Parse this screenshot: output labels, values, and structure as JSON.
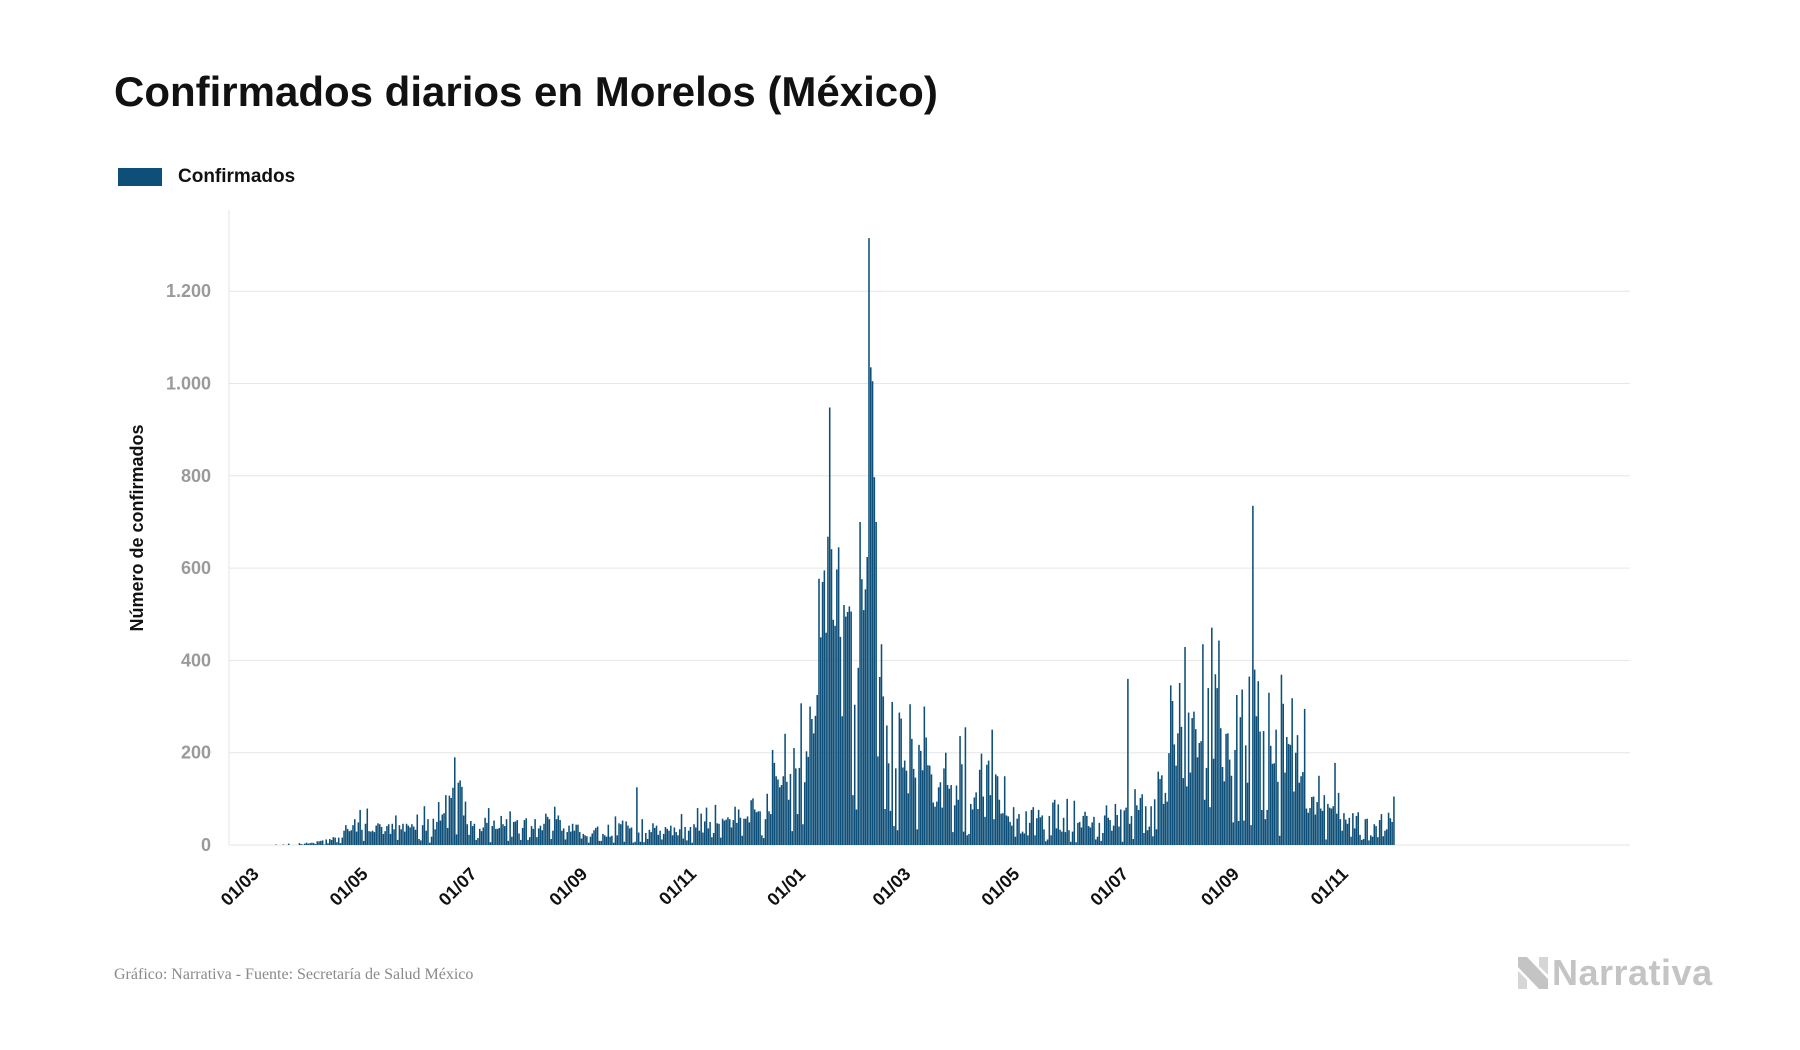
{
  "page": {
    "title": "Confirmados diarios en Morelos (México)",
    "source": "Gráfico: Narrativa - Fuente: Secretaría de Salud México",
    "brand": "Narrativa",
    "brand_icon": "narrativa-n-logo-icon"
  },
  "colors": {
    "bar": "#0d4f78",
    "grid": "#e6e6e6",
    "tick_label": "#9a9a9a",
    "axis_title": "#111111",
    "x_tick_label": "#111111"
  },
  "chart_data": {
    "type": "bar",
    "title": "Confirmados diarios en Morelos (México)",
    "legend": {
      "position": "top-left",
      "entries": [
        "Confirmados"
      ]
    },
    "ylabel": "Número de confirmados",
    "ylim": [
      0,
      1380
    ],
    "y_ticks": [
      0,
      200,
      400,
      600,
      800,
      1000,
      1200
    ],
    "y_tick_labels": [
      "0",
      "200",
      "400",
      "600",
      "800",
      "1.000",
      "1.200"
    ],
    "grid": true,
    "x_tick_labels": [
      "01/03",
      "01/05",
      "01/07",
      "01/09",
      "01/11",
      "01/01",
      "01/03",
      "01/05",
      "01/07",
      "01/09",
      "01/11"
    ],
    "x_tick_dates": [
      "2020-03-01",
      "2020-05-01",
      "2020-07-01",
      "2020-09-01",
      "2020-11-01",
      "2021-01-01",
      "2021-03-01",
      "2021-05-01",
      "2021-07-01",
      "2021-09-01",
      "2021-11-01"
    ],
    "x_range": [
      "2020-03-01",
      "2021-11-30"
    ],
    "anchors": [
      [
        "2020-03-01",
        0
      ],
      [
        "2020-03-15",
        1
      ],
      [
        "2020-04-01",
        4
      ],
      [
        "2020-04-15",
        12
      ],
      [
        "2020-04-25",
        32
      ],
      [
        "2020-05-01",
        45
      ],
      [
        "2020-05-15",
        35
      ],
      [
        "2020-06-01",
        40
      ],
      [
        "2020-06-15",
        55
      ],
      [
        "2020-06-22",
        190
      ],
      [
        "2020-06-25",
        130
      ],
      [
        "2020-07-01",
        55
      ],
      [
        "2020-07-15",
        45
      ],
      [
        "2020-08-01",
        45
      ],
      [
        "2020-08-15",
        55
      ],
      [
        "2020-09-01",
        35
      ],
      [
        "2020-09-15",
        30
      ],
      [
        "2020-10-01",
        45
      ],
      [
        "2020-10-15",
        35
      ],
      [
        "2020-11-01",
        40
      ],
      [
        "2020-11-15",
        45
      ],
      [
        "2020-12-01",
        75
      ],
      [
        "2020-12-15",
        90
      ],
      [
        "2020-12-29",
        190
      ],
      [
        "2021-01-08",
        170
      ],
      [
        "2021-01-12",
        330
      ],
      [
        "2021-01-18",
        500
      ],
      [
        "2021-01-27",
        470
      ],
      [
        "2021-02-02",
        300
      ],
      [
        "2021-02-06",
        520
      ],
      [
        "2021-02-09",
        860
      ],
      [
        "2021-02-13",
        600
      ],
      [
        "2021-02-17",
        250
      ],
      [
        "2021-02-25",
        170
      ],
      [
        "2021-03-10",
        170
      ],
      [
        "2021-03-25",
        130
      ],
      [
        "2021-04-10",
        110
      ],
      [
        "2021-04-25",
        80
      ],
      [
        "2021-05-10",
        70
      ],
      [
        "2021-05-25",
        50
      ],
      [
        "2021-06-10",
        50
      ],
      [
        "2021-06-25",
        45
      ],
      [
        "2021-07-05",
        80
      ],
      [
        "2021-07-20",
        120
      ],
      [
        "2021-08-01",
        200
      ],
      [
        "2021-08-15",
        260
      ],
      [
        "2021-09-01",
        230
      ],
      [
        "2021-09-15",
        230
      ],
      [
        "2021-10-01",
        180
      ],
      [
        "2021-10-15",
        110
      ],
      [
        "2021-11-01",
        55
      ],
      [
        "2021-11-30",
        55
      ]
    ],
    "peaks": [
      [
        "2020-06-22",
        190
      ],
      [
        "2020-06-24",
        135
      ],
      [
        "2020-06-25",
        140
      ],
      [
        "2020-10-02",
        125
      ],
      [
        "2020-12-29",
        210
      ],
      [
        "2021-01-11",
        325
      ],
      [
        "2021-01-13",
        450
      ],
      [
        "2021-01-14",
        570
      ],
      [
        "2021-01-15",
        595
      ],
      [
        "2021-01-16",
        460
      ],
      [
        "2021-01-21",
        475
      ],
      [
        "2021-01-23",
        645
      ],
      [
        "2021-01-26",
        520
      ],
      [
        "2021-01-28",
        505
      ],
      [
        "2021-02-09",
        1315
      ],
      [
        "2021-02-10",
        1035
      ],
      [
        "2021-02-11",
        1005
      ],
      [
        "2021-02-13",
        700
      ],
      [
        "2021-02-22",
        310
      ],
      [
        "2021-03-04",
        305
      ],
      [
        "2021-04-04",
        255
      ],
      [
        "2021-04-19",
        250
      ],
      [
        "2021-07-04",
        360
      ],
      [
        "2021-08-18",
        340
      ],
      [
        "2021-08-22",
        370
      ],
      [
        "2021-09-03",
        325
      ],
      [
        "2021-09-10",
        365
      ],
      [
        "2021-09-12",
        735
      ],
      [
        "2021-09-15",
        355
      ],
      [
        "2021-09-21",
        330
      ],
      [
        "2021-10-11",
        295
      ],
      [
        "2021-10-28",
        178
      ]
    ],
    "note_values": "Daily values estimated from the bar heights; 'anchors' give the typical daily level and 'peaks' the highest readable spikes."
  }
}
